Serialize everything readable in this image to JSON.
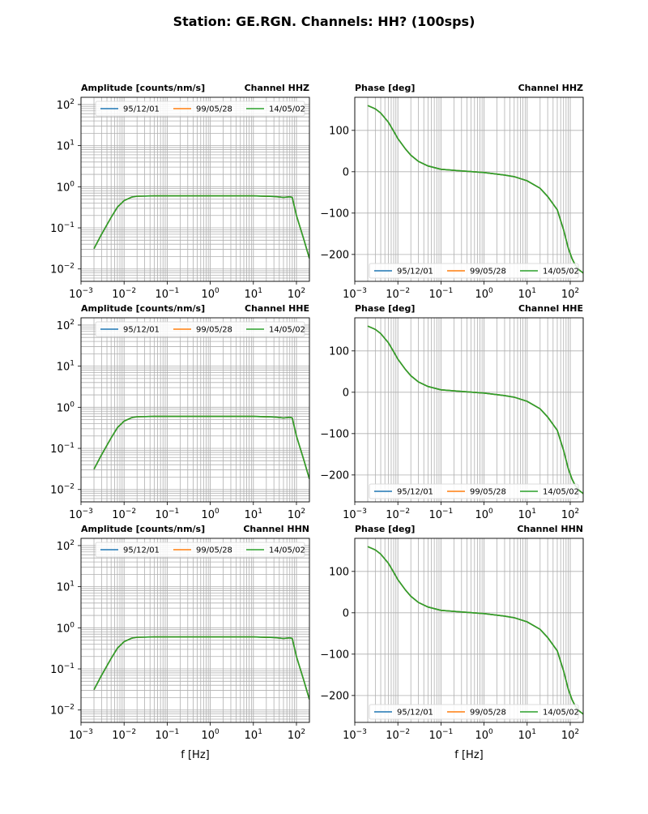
{
  "figure": {
    "title": "Station: GE.RGN. Channels: HH? (100sps)"
  },
  "chart_data": {
    "type": "line",
    "xlabel": "f [Hz]",
    "xscale": "log",
    "xlim": [
      0.001,
      200
    ],
    "x_ticks": [
      0.001,
      0.01,
      0.1,
      1,
      10,
      100
    ],
    "x_tick_labels": [
      [
        "10",
        "−3"
      ],
      [
        "10",
        "−2"
      ],
      [
        "10",
        "−1"
      ],
      [
        "10",
        "0"
      ],
      [
        "10",
        "1"
      ],
      [
        "10",
        "2"
      ]
    ],
    "series_names": [
      "95/12/01",
      "99/05/28",
      "14/05/02"
    ],
    "series_colors": [
      "#1f77b4",
      "#ff7f0e",
      "#2ca02c"
    ],
    "amplitude": {
      "title": "Amplitude [counts/nm/s]",
      "yscale": "log",
      "ylim": [
        0.005,
        150
      ],
      "y_ticks": [
        0.01,
        0.1,
        1,
        10,
        100
      ],
      "y_tick_labels": [
        [
          "10",
          "−2"
        ],
        [
          "10",
          "−1"
        ],
        [
          "10",
          "0"
        ],
        [
          "10",
          "1"
        ],
        [
          "10",
          "2"
        ]
      ],
      "freq": [
        0.002,
        0.003,
        0.005,
        0.007,
        0.01,
        0.015,
        0.02,
        0.05,
        0.1,
        1,
        10,
        30,
        50,
        70,
        80,
        100,
        150,
        200
      ],
      "values": [
        0.031,
        0.07,
        0.18,
        0.32,
        0.46,
        0.56,
        0.59,
        0.6,
        0.6,
        0.6,
        0.6,
        0.58,
        0.55,
        0.57,
        0.55,
        0.2,
        0.05,
        0.018
      ]
    },
    "phase": {
      "title": "Phase [deg]",
      "yscale": "linear",
      "ylim": [
        -265,
        180
      ],
      "y_ticks": [
        100,
        0,
        -100,
        -200
      ],
      "y_tick_labels": [
        "100",
        "0",
        "−100",
        "−200"
      ],
      "freq": [
        0.002,
        0.003,
        0.004,
        0.006,
        0.008,
        0.01,
        0.015,
        0.02,
        0.03,
        0.05,
        0.1,
        0.3,
        1,
        3,
        5,
        10,
        20,
        30,
        50,
        70,
        90,
        110,
        130,
        160,
        200
      ],
      "values": [
        160,
        152,
        142,
        120,
        98,
        80,
        55,
        40,
        25,
        14,
        6,
        2,
        -2,
        -8,
        -12,
        -22,
        -40,
        -60,
        -92,
        -140,
        -185,
        -210,
        -225,
        -237,
        -245
      ]
    },
    "panels": [
      {
        "channel": "Channel HHZ"
      },
      {
        "channel": "Channel HHE"
      },
      {
        "channel": "Channel HHN"
      }
    ]
  }
}
